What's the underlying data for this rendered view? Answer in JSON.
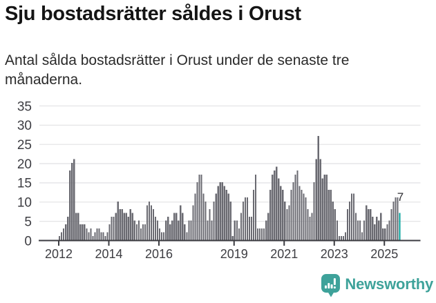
{
  "header": {
    "title": "Sju bostadsrätter såldes i Orust",
    "subtitle": "Antal sålda bostadsrätter i Orust under de senaste tre månaderna."
  },
  "chart_data": {
    "type": "bar",
    "title": "Sju bostadsrätter såldes i Orust",
    "subtitle": "Antal sålda bostadsrätter i Orust under de senaste tre månaderna.",
    "ylim": [
      0,
      35
    ],
    "yticks": [
      0,
      5,
      10,
      15,
      20,
      25,
      30,
      35
    ],
    "xtick_years": [
      2012,
      2014,
      2016,
      2019,
      2021,
      2023,
      2025
    ],
    "grid": "horizontal",
    "legend": "none",
    "bars_are_monthly": true,
    "values_by_year": {
      "2012": [
        1,
        2,
        3,
        4,
        6,
        18,
        20,
        21,
        7,
        7,
        4,
        4
      ],
      "2013": [
        4,
        3,
        2,
        3,
        1,
        2,
        3,
        3,
        2,
        2,
        1,
        2
      ],
      "2014": [
        4,
        6,
        6,
        7,
        10,
        8,
        8,
        7,
        7,
        6,
        8,
        7
      ],
      "2015": [
        5,
        4,
        5,
        3,
        4,
        4,
        9,
        10,
        9,
        8,
        6,
        5
      ],
      "2016": [
        3,
        2,
        2,
        5,
        6,
        4,
        5,
        7,
        7,
        5,
        9,
        7
      ],
      "2017": [
        4,
        2,
        5,
        5,
        9,
        12,
        15,
        17,
        17,
        12,
        10,
        5
      ],
      "2018": [
        8,
        5,
        10,
        12,
        14,
        15,
        15,
        14,
        13,
        12,
        10,
        1
      ],
      "2019": [
        5,
        5,
        3,
        7,
        10,
        11,
        11,
        6,
        6,
        13,
        17,
        3
      ],
      "2020": [
        3,
        3,
        3,
        5,
        7,
        13,
        17,
        18,
        19,
        16,
        14,
        13
      ],
      "2021": [
        10,
        8,
        9,
        13,
        15,
        17,
        18,
        14,
        13,
        12,
        11,
        8
      ],
      "2022": [
        6,
        7,
        15,
        21,
        27,
        21,
        16,
        17,
        17,
        13,
        13,
        10
      ],
      "2023": [
        8,
        5,
        1,
        1,
        1,
        2,
        8,
        10,
        12,
        12,
        7,
        5
      ],
      "2024": [
        5,
        2,
        5,
        9,
        8,
        8,
        6,
        4,
        6,
        5,
        7,
        3
      ],
      "2025": [
        3,
        4,
        5,
        8,
        10,
        11,
        11,
        7
      ]
    },
    "highlight": {
      "position": "last",
      "value": 7,
      "label": "7"
    },
    "colors": {
      "bar": "#6a6a71",
      "highlight": "#00a29b",
      "gridline": "#e4e4e6",
      "axis": "#3b3b40",
      "tick_label": "#3d3d42",
      "annotation": "#2f2f33"
    }
  },
  "footer": {
    "brand": "Newsworthy",
    "brand_color": "#3ea29a",
    "icon": "newsworthy-bar-chart-pin-icon"
  }
}
